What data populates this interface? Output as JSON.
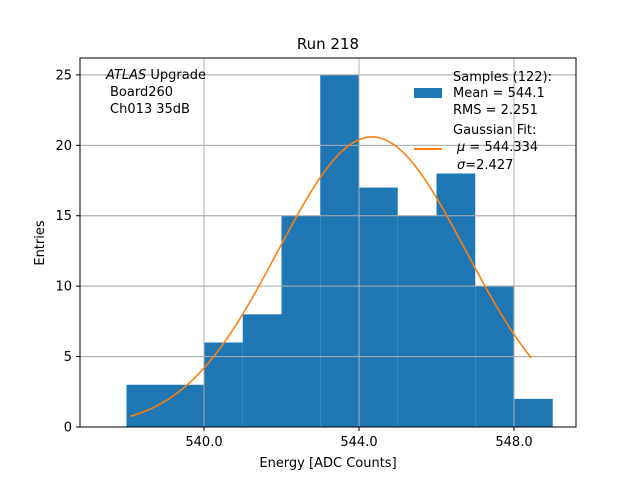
{
  "chart_data": {
    "type": "bar",
    "title": "Run 218",
    "xlabel": "Energy [ADC Counts]",
    "ylabel": "Entries",
    "xlim": [
      536.8,
      549.6
    ],
    "ylim": [
      0,
      26.2
    ],
    "xticks": [
      540.0,
      544.0,
      548.0
    ],
    "xtick_labels": [
      "540.0",
      "544.0",
      "548.0"
    ],
    "yticks": [
      0,
      5,
      10,
      15,
      20,
      25
    ],
    "ytick_labels": [
      "0",
      "5",
      "10",
      "15",
      "20",
      "25"
    ],
    "grid": true,
    "bins": [
      {
        "x0": 538,
        "x1": 540,
        "value": 3
      },
      {
        "x0": 540,
        "x1": 541,
        "value": 6
      },
      {
        "x0": 541,
        "x1": 542,
        "value": 8
      },
      {
        "x0": 542,
        "x1": 543,
        "value": 15
      },
      {
        "x0": 543,
        "x1": 544,
        "value": 25
      },
      {
        "x0": 544,
        "x1": 545,
        "value": 17
      },
      {
        "x0": 545,
        "x1": 546,
        "value": 15
      },
      {
        "x0": 546,
        "x1": 547,
        "value": 18
      },
      {
        "x0": 547,
        "x1": 548,
        "value": 10
      },
      {
        "x0": 548,
        "x1": 549,
        "value": 2
      }
    ],
    "fit": {
      "mu": 544.334,
      "sigma": 2.427,
      "amplitude": 20.6,
      "x_range": [
        538.1,
        548.45
      ]
    },
    "colors": {
      "bars": "#1f77b4",
      "fit": "#ff7f0e",
      "grid": "#b0b0b0"
    },
    "annotation": {
      "line1_italic": "ATLAS",
      "line1_rest": " Upgrade",
      "line2": "Board260",
      "line3": "Ch013 35dB"
    },
    "legend": {
      "placement": "top-right",
      "samples_line1": "Samples (122):",
      "samples_line2": " Mean = 544.1",
      "samples_line3": " RMS = 2.251",
      "fit_line1": "Gaussian Fit:",
      "fit_mu_symbol": "μ",
      "fit_mu_rest": " = 544.334",
      "fit_sigma_symbol": "σ",
      "fit_sigma_rest": "=2.427"
    }
  }
}
